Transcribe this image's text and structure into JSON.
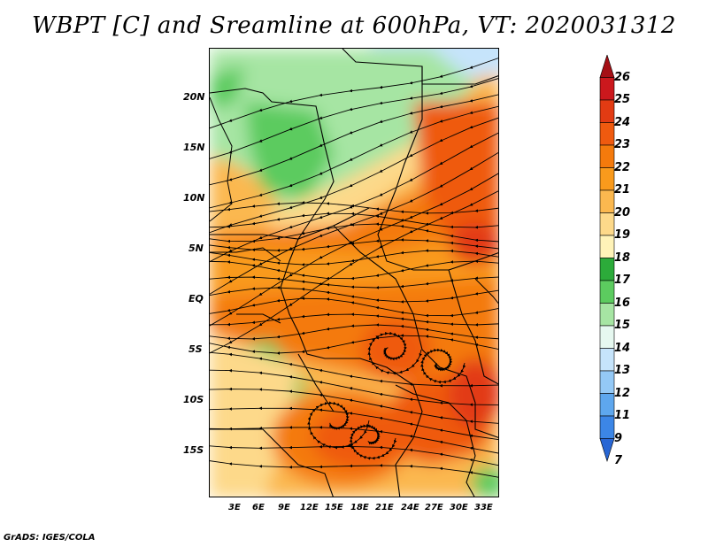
{
  "title": "WBPT [C] and Sreamline at 600hPa, VT: 2020031312",
  "footer": "GrADS: IGES/COLA",
  "map": {
    "lat_labels": [
      "20N",
      "15N",
      "10N",
      "5N",
      "EQ",
      "5S",
      "10S",
      "15S"
    ],
    "lon_labels": [
      "3E",
      "6E",
      "9E",
      "12E",
      "15E",
      "18E",
      "21E",
      "24E",
      "27E",
      "30E",
      "33E"
    ]
  },
  "colorbar": {
    "levels": [
      "26",
      "25",
      "24",
      "23",
      "22",
      "21",
      "20",
      "19",
      "18",
      "17",
      "16",
      "15",
      "14",
      "13",
      "12",
      "11",
      "9",
      "7"
    ],
    "colors": [
      "#a50f15",
      "#cb181d",
      "#e23b13",
      "#ef5a0f",
      "#f47a0c",
      "#f99a1c",
      "#fbb84f",
      "#fdd98a",
      "#fff3b8",
      "#2cab3a",
      "#5ccb5f",
      "#a6e5a3",
      "#e6f8f0",
      "#c6e4fb",
      "#94c9f6",
      "#5ea7ee",
      "#3c86e6",
      "#2866d4"
    ]
  }
}
